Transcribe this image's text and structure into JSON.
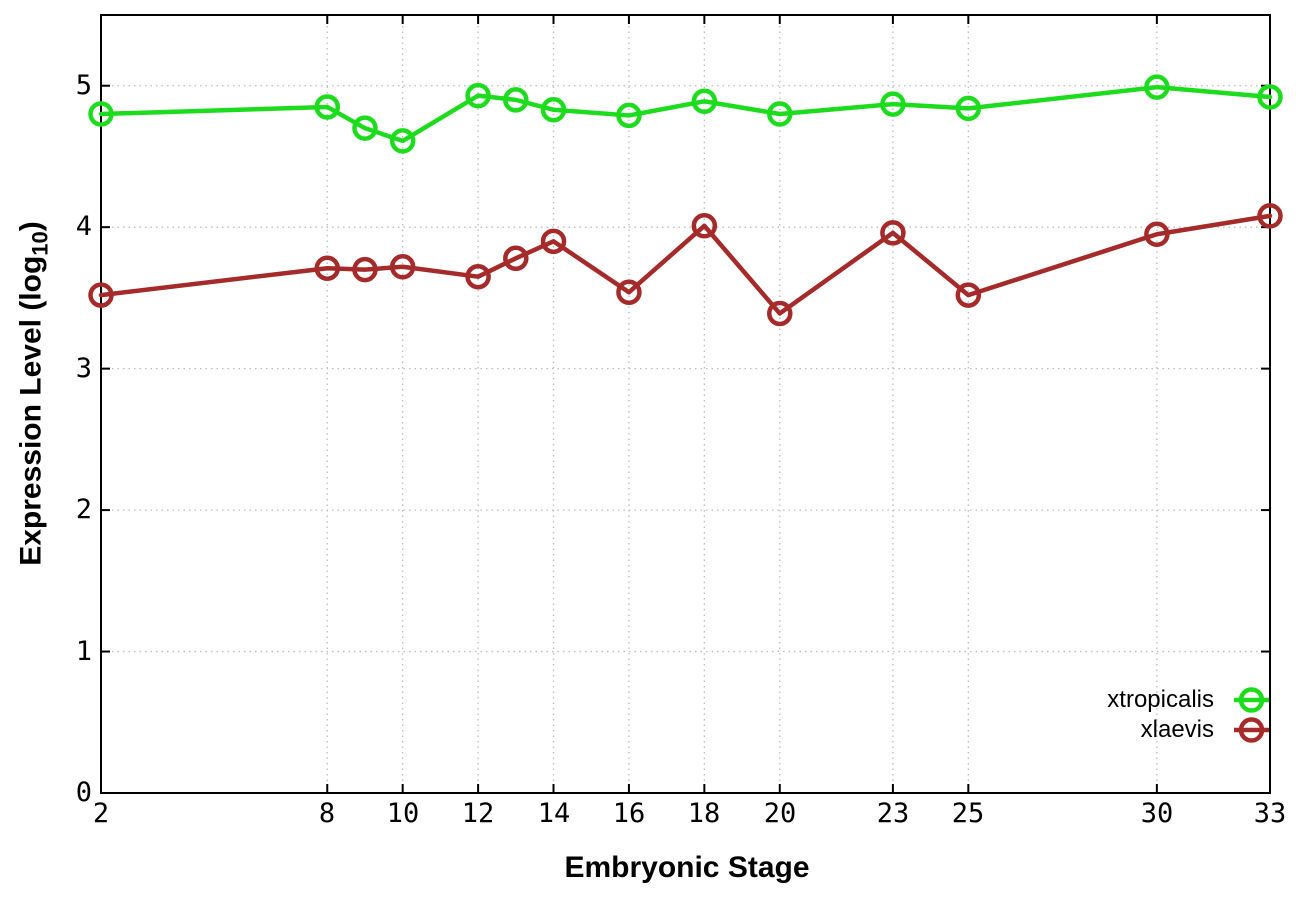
{
  "chart_data": {
    "type": "line",
    "title": "",
    "xlabel": "Embryonic Stage",
    "ylabel": {
      "main": "Expression Level (log",
      "sub": "10",
      "end": ")"
    },
    "xlim": [
      2,
      33
    ],
    "ylim": [
      0,
      5.5
    ],
    "grid": true,
    "legend_position": "inside-bottom-right",
    "x": [
      2,
      8,
      9,
      10,
      12,
      13,
      14,
      16,
      18,
      20,
      23,
      25,
      30,
      33
    ],
    "x_tick_labels": [
      "2",
      "8",
      "10",
      "12",
      "14",
      "16",
      "18",
      "20",
      "23",
      "25",
      "30",
      "33"
    ],
    "x_tick_values": [
      2,
      8,
      10,
      12,
      14,
      16,
      18,
      20,
      23,
      25,
      30,
      33
    ],
    "y_tick_labels": [
      "0",
      "1",
      "2",
      "3",
      "4",
      "5"
    ],
    "y_tick_values": [
      0,
      1,
      2,
      3,
      4,
      5
    ],
    "marker": "open-circle",
    "series": [
      {
        "name": "xtropicalis",
        "color": "#1ddb1d",
        "values": [
          4.8,
          4.85,
          4.7,
          4.61,
          4.93,
          4.9,
          4.83,
          4.79,
          4.89,
          4.8,
          4.87,
          4.84,
          4.99,
          4.92
        ]
      },
      {
        "name": "xlaevis",
        "color": "#a52a2a",
        "values": [
          3.52,
          3.71,
          3.7,
          3.72,
          3.65,
          3.78,
          3.9,
          3.54,
          4.01,
          3.39,
          3.96,
          3.52,
          3.95,
          4.08
        ]
      }
    ],
    "colors": {
      "grid": "#bdbdbd",
      "axis": "#000000",
      "text": "#000000",
      "background": "#ffffff"
    }
  }
}
